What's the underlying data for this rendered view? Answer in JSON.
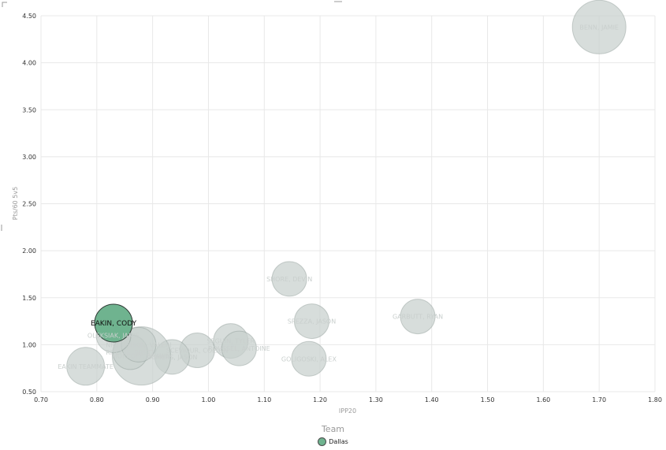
{
  "chart_data": {
    "type": "scatter",
    "xlabel": "IPP20",
    "ylabel": "Pts/60 5v5",
    "xlim": [
      0.7,
      1.8
    ],
    "ylim": [
      0.5,
      4.5
    ],
    "x_ticks": [
      "0.70",
      "0.80",
      "0.90",
      "1.00",
      "1.10",
      "1.20",
      "1.30",
      "1.40",
      "1.50",
      "1.60",
      "1.70",
      "1.80"
    ],
    "y_ticks": [
      "0.50",
      "1.00",
      "1.50",
      "2.00",
      "2.50",
      "3.00",
      "3.50",
      "4.00",
      "4.50"
    ],
    "grid": true,
    "legend": {
      "title": "Team",
      "position": "bottom",
      "items": [
        {
          "label": "Dallas",
          "color": "#6fb38f"
        }
      ]
    },
    "colors": {
      "highlight": "#6fb38f",
      "muted": "#c8d0cd",
      "muted_dark": "#8f9c96"
    },
    "points": [
      {
        "label": "EAKIN, CODY",
        "x": 0.83,
        "y": 1.23,
        "highlight": true
      },
      {
        "label": "BENN, JAMIE",
        "x": 1.7,
        "y": 4.38
      },
      {
        "label": "SHORE, DEVIN",
        "x": 1.145,
        "y": 1.7
      },
      {
        "label": "SPEZZA, JASON",
        "x": 1.185,
        "y": 1.25
      },
      {
        "label": "GARBUTT, RYAN",
        "x": 1.375,
        "y": 1.3
      },
      {
        "label": "GOLIGOSKI, ALEX",
        "x": 1.18,
        "y": 0.85
      },
      {
        "label": "SEGUIN, TYLER",
        "x": 1.04,
        "y": 1.04
      },
      {
        "label": "ROUSSEL, ANTOINE",
        "x": 1.055,
        "y": 0.96
      },
      {
        "label": "SCEVIOUR, COLTON",
        "x": 0.98,
        "y": 0.94
      },
      {
        "label": "DEMERS, JASON",
        "x": 0.935,
        "y": 0.87
      },
      {
        "label": "HORCOFF, SHAWN",
        "x": 0.88,
        "y": 0.88
      },
      {
        "label": "RITCHIE, BRETT",
        "x": 0.86,
        "y": 0.92
      },
      {
        "label": "NICHUSHKIN, VALERI",
        "x": 0.875,
        "y": 1.0
      },
      {
        "label": "OLEKSIAK, JAMIE",
        "x": 0.83,
        "y": 1.1
      },
      {
        "label": "EAKIN TEAMMATE",
        "x": 0.78,
        "y": 0.77
      }
    ]
  }
}
